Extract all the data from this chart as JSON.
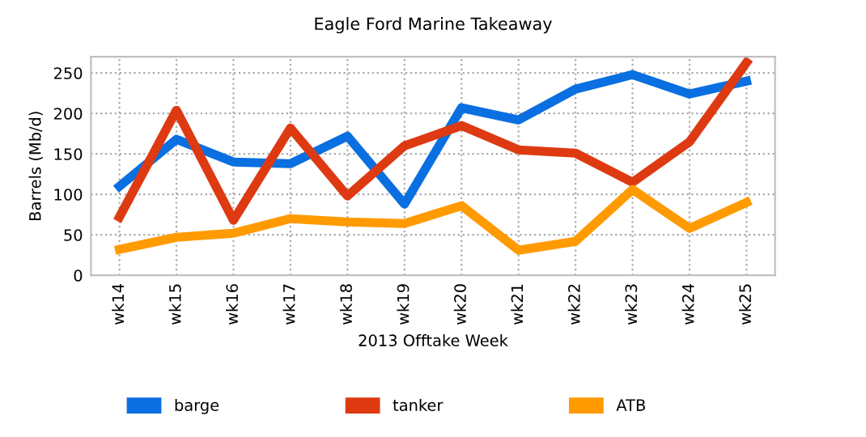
{
  "chart_data": {
    "type": "line",
    "title": "Eagle Ford Marine Takeaway",
    "xlabel": "2013 Offtake Week",
    "ylabel": "Barrels (Mb/d)",
    "categories": [
      "wk14",
      "wk15",
      "wk16",
      "wk17",
      "wk18",
      "wk19",
      "wk20",
      "wk21",
      "wk22",
      "wk23",
      "wk24",
      "wk25"
    ],
    "series": [
      {
        "name": "barge",
        "color": "#0a6fe0",
        "values": [
          110,
          168,
          140,
          138,
          172,
          88,
          207,
          192,
          230,
          248,
          224,
          240
        ]
      },
      {
        "name": "tanker",
        "color": "#de3a12",
        "values": [
          72,
          204,
          68,
          182,
          98,
          160,
          185,
          155,
          151,
          115,
          165,
          263
        ]
      },
      {
        "name": "ATB",
        "color": "#ff9a00",
        "values": [
          32,
          47,
          52,
          70,
          66,
          64,
          86,
          31,
          42,
          106,
          58,
          90
        ]
      }
    ],
    "ylim": [
      0,
      270
    ],
    "yticks": [
      0,
      50,
      100,
      150,
      200,
      250
    ],
    "grid": true,
    "legend": "bottom",
    "marker": "none",
    "line_style": "solid"
  }
}
